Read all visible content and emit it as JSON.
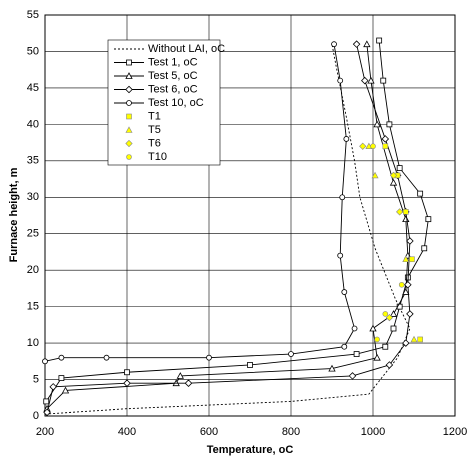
{
  "chart_data": {
    "type": "line",
    "x_label": "Temperature, oC",
    "y_label": "Furnace height, m",
    "xlim": [
      200,
      1200
    ],
    "xticks": [
      200,
      400,
      600,
      800,
      1000,
      1200
    ],
    "ylim": [
      0,
      55
    ],
    "yticks": [
      0,
      5,
      10,
      15,
      20,
      25,
      30,
      35,
      40,
      45,
      50,
      55
    ],
    "grid": true,
    "legend": "upper left",
    "series": [
      {
        "name": "Without LAI, oC",
        "color": "#000000",
        "line": "dotted",
        "marker": "none",
        "x": [
          210,
          400,
          600,
          800,
          990,
          1060,
          1090,
          1055,
          1005,
          968,
          955,
          935,
          910,
          900
        ],
        "values": [
          0.3,
          1,
          1.5,
          2,
          3,
          8,
          12,
          16,
          23,
          30,
          35,
          41,
          48,
          51
        ]
      },
      {
        "name": "Test 1, oC",
        "color": "#000000",
        "line": "solid",
        "marker": "square",
        "x": [
          203,
          240,
          400,
          700,
          960,
          1030,
          1050,
          1065,
          1085,
          1125,
          1135,
          1115,
          1065,
          1040,
          1025,
          1015
        ],
        "values": [
          2,
          5.2,
          6,
          7,
          8.5,
          9.5,
          12,
          15,
          19,
          23,
          27,
          30.5,
          34,
          40,
          46,
          51.5
        ]
      },
      {
        "name": "Test 5, oC",
        "color": "#000000",
        "line": "solid",
        "marker": "triangle",
        "x": [
          205,
          250,
          520,
          530,
          900,
          1010,
          1000,
          1050,
          1080,
          1085,
          1080,
          1050,
          1010,
          995,
          985
        ],
        "values": [
          1,
          3.5,
          4.5,
          5.5,
          6.5,
          8,
          12,
          14,
          17,
          22,
          27,
          32,
          40,
          46,
          51
        ]
      },
      {
        "name": "Test 6, oC",
        "color": "#000000",
        "line": "solid",
        "marker": "diamond",
        "x": [
          205,
          220,
          400,
          550,
          950,
          1040,
          1080,
          1090,
          1085,
          1090,
          1080,
          1060,
          1030,
          980,
          960
        ],
        "values": [
          0.5,
          4,
          4.5,
          4.5,
          5.5,
          7,
          10,
          14,
          18,
          24,
          28,
          33,
          38,
          46,
          51
        ]
      },
      {
        "name": "Test 10, oC",
        "color": "#000000",
        "line": "solid",
        "marker": "circle",
        "x": [
          200,
          240,
          350,
          600,
          800,
          930,
          955,
          930,
          920,
          925,
          935,
          920,
          905
        ],
        "values": [
          7.5,
          8,
          8,
          8,
          8.5,
          9.5,
          12,
          17,
          22,
          30,
          38,
          46,
          51
        ]
      },
      {
        "name": "T1",
        "color": "#ffff00",
        "line": "none",
        "marker": "square",
        "x": [
          1115,
          1095,
          1080,
          1060,
          1030
        ],
        "values": [
          10.5,
          21.5,
          28,
          33,
          37
        ]
      },
      {
        "name": "T5",
        "color": "#ffff00",
        "line": "none",
        "marker": "triangle",
        "x": [
          1100,
          1080,
          1005,
          990
        ],
        "values": [
          10.5,
          21.5,
          33,
          37
        ]
      },
      {
        "name": "T6",
        "color": "#ffff00",
        "line": "none",
        "marker": "diamond",
        "x": [
          1040,
          1065,
          1050,
          975
        ],
        "values": [
          13.5,
          28,
          33,
          37
        ]
      },
      {
        "name": "T10",
        "color": "#ffff00",
        "line": "none",
        "marker": "circle",
        "x": [
          1010,
          1030,
          1070,
          1000
        ],
        "values": [
          10.5,
          14,
          18,
          37
        ]
      }
    ]
  }
}
